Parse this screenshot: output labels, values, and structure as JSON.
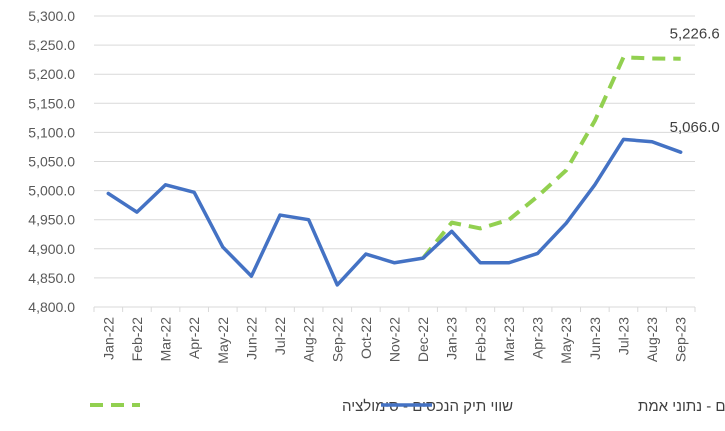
{
  "chart_data": {
    "type": "line",
    "categories": [
      "Jan-22",
      "Feb-22",
      "Mar-22",
      "Apr-22",
      "May-22",
      "Jun-22",
      "Jul-22",
      "Aug-22",
      "Sep-22",
      "Oct-22",
      "Nov-22",
      "Dec-22",
      "Jan-23",
      "Feb-23",
      "Mar-23",
      "Apr-23",
      "May-23",
      "Jun-23",
      "Jul-23",
      "Aug-23",
      "Sep-23"
    ],
    "ylim": [
      4800,
      5300
    ],
    "yticks": [
      "4,800.0",
      "4,850.0",
      "4,900.0",
      "4,950.0",
      "5,000.0",
      "5,050.0",
      "5,100.0",
      "5,150.0",
      "5,200.0",
      "5,250.0",
      "5,300.0"
    ],
    "ytick_values": [
      4800,
      4850,
      4900,
      4950,
      5000,
      5050,
      5100,
      5150,
      5200,
      5250,
      5300
    ],
    "grid": "horizontal",
    "legend_position": "bottom",
    "series": [
      {
        "name": "שווי תיק הנכסים - נתוני אמת",
        "color": "#4472C4",
        "style": "solid",
        "values": [
          4995,
          4963,
          5010,
          4997,
          4903,
          4853,
          4958,
          4950,
          4838,
          4891,
          4876,
          4884,
          4930,
          4876,
          4876,
          4892,
          4944,
          5010,
          5088,
          5084,
          5066
        ],
        "end_label": "5,066.0"
      },
      {
        "name": "שווי תיק הנכסים - סימולציה",
        "color": "#92D050",
        "style": "dashed",
        "values": [
          null,
          null,
          null,
          null,
          null,
          null,
          null,
          null,
          null,
          null,
          null,
          4884,
          4945,
          4935,
          4950,
          4990,
          5035,
          5120,
          5229,
          5227,
          5226.6
        ],
        "end_label": "5,226.6"
      }
    ]
  }
}
